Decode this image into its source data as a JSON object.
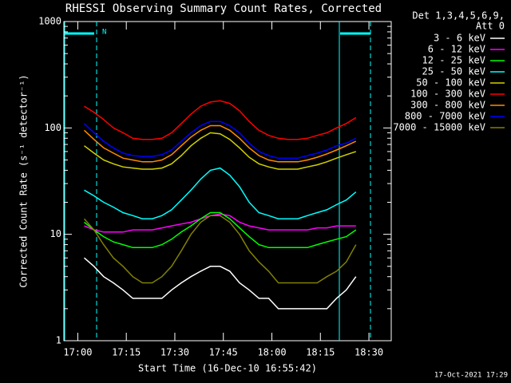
{
  "chart_data": {
    "type": "line",
    "title": "RHESSI Observing Summary Count Rates, Corrected",
    "x_label": "Start Time (16-Dec-10 16:55:42)",
    "y_label": "Corrected Count Rate (s⁻¹ detector⁻¹)",
    "legend_title": [
      "Det 1,3,4,5,6,9,",
      "Att 0"
    ],
    "annotations": [
      "N"
    ],
    "footer": "17-Oct-2021 17:29",
    "log_y": true,
    "grid": false,
    "legend_position": "outside-right",
    "xlim": [
      "16:55:42",
      "18:36:54"
    ],
    "xticks": [
      "17:00",
      "17:15",
      "17:30",
      "17:45",
      "18:00",
      "18:15",
      "18:30"
    ],
    "ylim": [
      1,
      1000
    ],
    "yticks": [
      1,
      10,
      100,
      1000
    ],
    "x": [
      "17:02",
      "17:05",
      "17:08",
      "17:11",
      "17:14",
      "17:17",
      "17:20",
      "17:23",
      "17:26",
      "17:29",
      "17:32",
      "17:35",
      "17:38",
      "17:41",
      "17:44",
      "17:47",
      "17:50",
      "17:53",
      "17:56",
      "17:59",
      "18:02",
      "18:05",
      "18:08",
      "18:11",
      "18:14",
      "18:17",
      "18:20",
      "18:23",
      "18:26"
    ],
    "series": [
      {
        "name": "3 - 6 keV",
        "color": "#ffffff",
        "values": [
          6,
          5,
          4,
          3.5,
          3,
          2.5,
          2.5,
          2.5,
          2.5,
          3,
          3.5,
          4,
          4.5,
          5,
          5,
          4.5,
          3.5,
          3,
          2.5,
          2.5,
          2,
          2,
          2,
          2,
          2,
          2,
          2.5,
          3,
          4
        ]
      },
      {
        "name": "6 - 12 keV",
        "color": "#ff00ff",
        "values": [
          12,
          11,
          10.5,
          10.5,
          10.5,
          11,
          11,
          11,
          11.5,
          12,
          12.5,
          13,
          14,
          15,
          15.5,
          15,
          13,
          12,
          11.5,
          11,
          11,
          11,
          11,
          11,
          11.5,
          11.5,
          12,
          12,
          12
        ]
      },
      {
        "name": "12 - 25 keV",
        "color": "#00ff00",
        "values": [
          13,
          11,
          9.5,
          8.5,
          8,
          7.5,
          7.5,
          7.5,
          8,
          9,
          10.5,
          12,
          14,
          16,
          16,
          14,
          11.5,
          9.5,
          8,
          7.5,
          7.5,
          7.5,
          7.5,
          7.5,
          8,
          8.5,
          9,
          9.5,
          11
        ]
      },
      {
        "name": "25 - 50 keV",
        "color": "#00ffff",
        "values": [
          26,
          23,
          20,
          18,
          16,
          15,
          14,
          14,
          15,
          17,
          21,
          26,
          33,
          40,
          42,
          36,
          28,
          20,
          16,
          15,
          14,
          14,
          14,
          15,
          16,
          17,
          19,
          21,
          25
        ]
      },
      {
        "name": "50 - 100 keV",
        "color": "#d2d200",
        "values": [
          68,
          58,
          50,
          46,
          43,
          42,
          41,
          41,
          42,
          46,
          55,
          68,
          80,
          90,
          88,
          78,
          65,
          53,
          46,
          43,
          41,
          41,
          41,
          43,
          45,
          48,
          52,
          56,
          60
        ]
      },
      {
        "name": "100 - 300 keV",
        "color": "#ff0000",
        "values": [
          160,
          140,
          120,
          100,
          90,
          80,
          78,
          78,
          80,
          90,
          110,
          135,
          160,
          175,
          180,
          170,
          145,
          115,
          95,
          85,
          80,
          78,
          78,
          80,
          85,
          90,
          100,
          110,
          125
        ]
      },
      {
        "name": "300 - 800 keV",
        "color": "#ff8c00",
        "values": [
          95,
          78,
          65,
          58,
          52,
          50,
          48,
          48,
          50,
          56,
          68,
          82,
          95,
          105,
          105,
          95,
          80,
          65,
          55,
          50,
          48,
          48,
          48,
          50,
          53,
          57,
          62,
          68,
          75
        ]
      },
      {
        "name": "800 - 7000 keV",
        "color": "#0000ff",
        "values": [
          110,
          90,
          75,
          65,
          58,
          55,
          54,
          54,
          56,
          62,
          75,
          90,
          105,
          115,
          115,
          105,
          90,
          72,
          60,
          55,
          52,
          52,
          52,
          55,
          58,
          62,
          68,
          72,
          80
        ]
      },
      {
        "name": "7000 - 15000 keV",
        "color": "#808000",
        "values": [
          14,
          11,
          8,
          6,
          5,
          4,
          3.5,
          3.5,
          4,
          5,
          7,
          10,
          13,
          15,
          15,
          13,
          10,
          7,
          5.5,
          4.5,
          3.5,
          3.5,
          3.5,
          3.5,
          3.5,
          4,
          4.5,
          5.5,
          8
        ]
      }
    ]
  }
}
